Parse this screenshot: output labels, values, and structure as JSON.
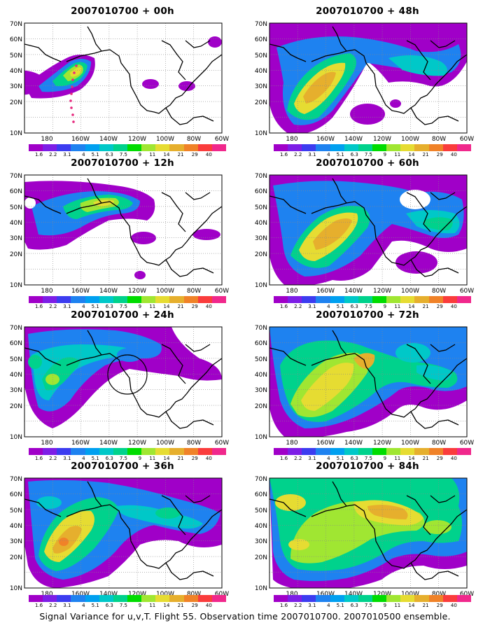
{
  "figure": {
    "caption": "Signal Variance for u,v,T. Flight 55. Observation time 2007010700. 2007010500 ensemble.",
    "colorbar": {
      "labels": [
        "1.6",
        "2.2",
        "3.1",
        "4",
        "5.1",
        "6.3",
        "7.5",
        "9",
        "11",
        "14",
        "21",
        "29",
        "40"
      ],
      "colors": [
        "#a000c8",
        "#7d1ee6",
        "#3c3cf0",
        "#1e82f0",
        "#00a0f0",
        "#00c8c8",
        "#00d28c",
        "#00dc00",
        "#a0e632",
        "#e6dc32",
        "#e6af2d",
        "#f08228",
        "#fa3c3c",
        "#f0288c"
      ]
    },
    "axes": {
      "y_labels": [
        "70N",
        "60N",
        "50N",
        "40N",
        "30N",
        "20N",
        "10N"
      ],
      "x_labels": [
        "180",
        "160W",
        "140W",
        "120W",
        "100W",
        "80W",
        "60W"
      ]
    },
    "panels": [
      {
        "title": "2007010700 + 00h",
        "forecast_hour": 0
      },
      {
        "title": "2007010700 + 48h",
        "forecast_hour": 48
      },
      {
        "title": "2007010700 + 12h",
        "forecast_hour": 12
      },
      {
        "title": "2007010700 + 60h",
        "forecast_hour": 60
      },
      {
        "title": "2007010700 + 24h",
        "forecast_hour": 24
      },
      {
        "title": "2007010700 + 72h",
        "forecast_hour": 72
      },
      {
        "title": "2007010700 + 36h",
        "forecast_hour": 36
      },
      {
        "title": "2007010700 + 84h",
        "forecast_hour": 84
      }
    ]
  }
}
